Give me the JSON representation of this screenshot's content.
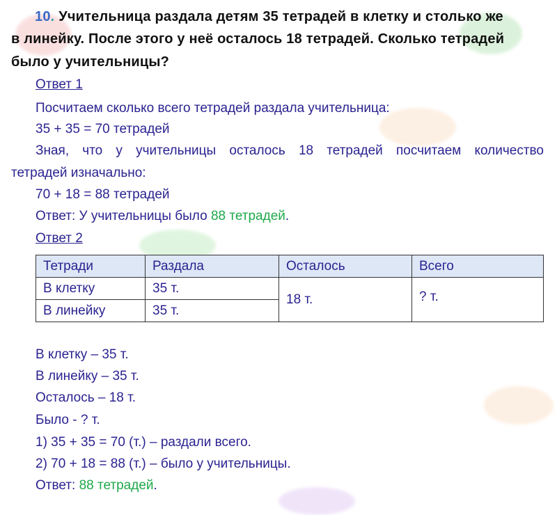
{
  "problem": {
    "number": "10",
    "line1": "Учительница раздала детям 35 тетрадей в клетку и столько же",
    "line2": "в линейку. После этого у неё осталось 18 тетрадей. Сколько тетрадей",
    "line3": "было у учительницы?"
  },
  "answer1": {
    "heading": "Ответ 1",
    "l1": "Посчитаем сколько всего тетрадей раздала учительница:",
    "l2": "35 + 35 = 70 тетрадей",
    "l3": "Зная, что у учительницы осталось 18 тетрадей посчитаем количество",
    "l4": "тетрадей изначально:",
    "l5": "70 + 18 = 88 тетрадей",
    "final_prefix": "Ответ: У учительницы было ",
    "final_value": "88 тетрадей",
    "final_suffix": "."
  },
  "answer2": {
    "heading": "Ответ 2",
    "table": {
      "headers": [
        "Тетради",
        "Раздала",
        "Осталось",
        "Всего"
      ],
      "rows": [
        [
          "В клетку",
          "35 т."
        ],
        [
          "В линейку",
          "35 т."
        ]
      ],
      "left": "18 т.",
      "total": "? т."
    },
    "lines": [
      "В клетку – 35 т.",
      "В линейку – 35 т.",
      "Осталось – 18 т.",
      "Было - ? т.",
      "1) 35 + 35 = 70 (т.) – раздали всего.",
      "2) 70 + 18 = 88 (т.) – было у учительницы."
    ],
    "final_prefix": "Ответ: ",
    "final_value": "88 тетрадей",
    "final_suffix": "."
  },
  "colors": {
    "text": "#2b2390",
    "accent_green": "#1fa84a",
    "number_blue": "#3a68c8",
    "table_header": "#dde7f6"
  }
}
